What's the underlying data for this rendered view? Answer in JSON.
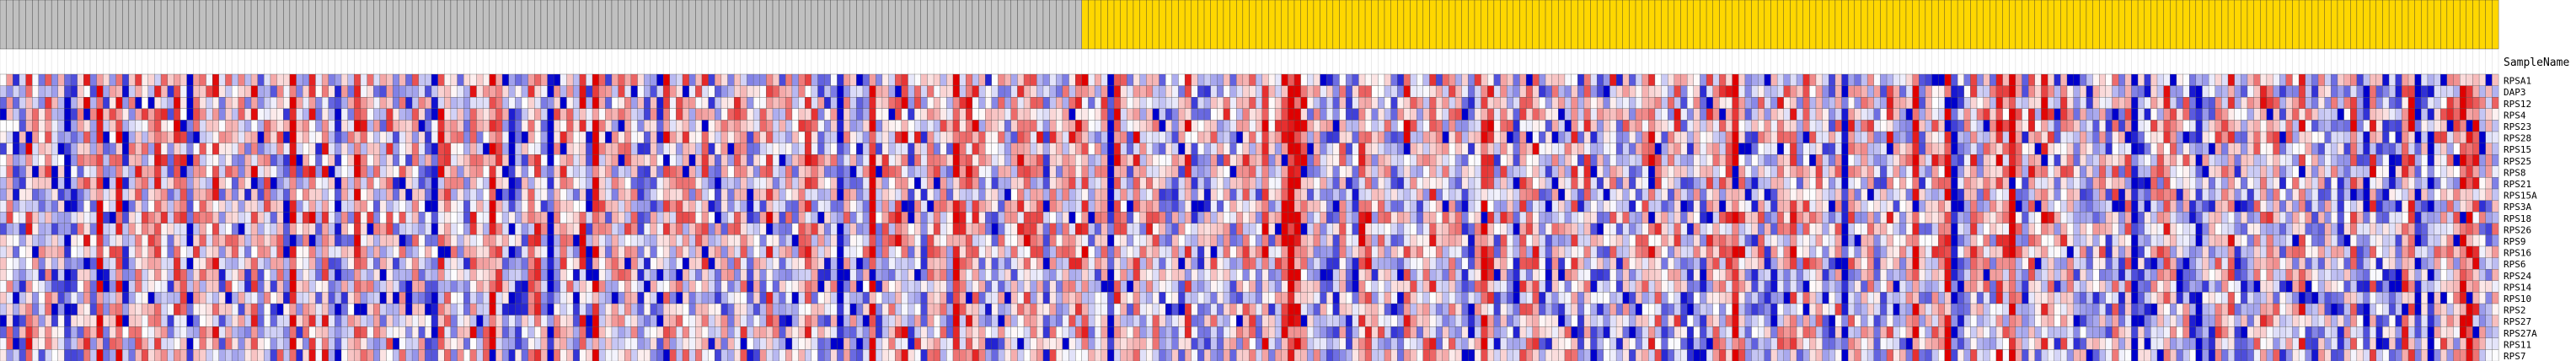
{
  "chart_data": {
    "type": "heatmap",
    "sample_name_label": "SampleName",
    "group_colors": {
      "group_a": "#c0c0c0",
      "group_b": "#ffd700"
    },
    "scale_colors": {
      "low": "#0000cc",
      "mid": "#ffffff",
      "high": "#e00000"
    },
    "n_samples_group_a": 168,
    "n_samples_group_b": 220,
    "rows": [
      "RPSA1",
      "DAP3",
      "RPS12",
      "RPS4",
      "RPS23",
      "RPS28",
      "RPS15",
      "RPS25",
      "RPS8",
      "RPS21",
      "RPS15A",
      "RPS3A",
      "RPS18",
      "RPS26",
      "RPS9",
      "RPS16",
      "RPS6",
      "RPS24",
      "RPS14",
      "RPS10",
      "RPS2",
      "RPS27",
      "RPS27A",
      "RPS11",
      "RPS7"
    ],
    "seed": 137
  }
}
